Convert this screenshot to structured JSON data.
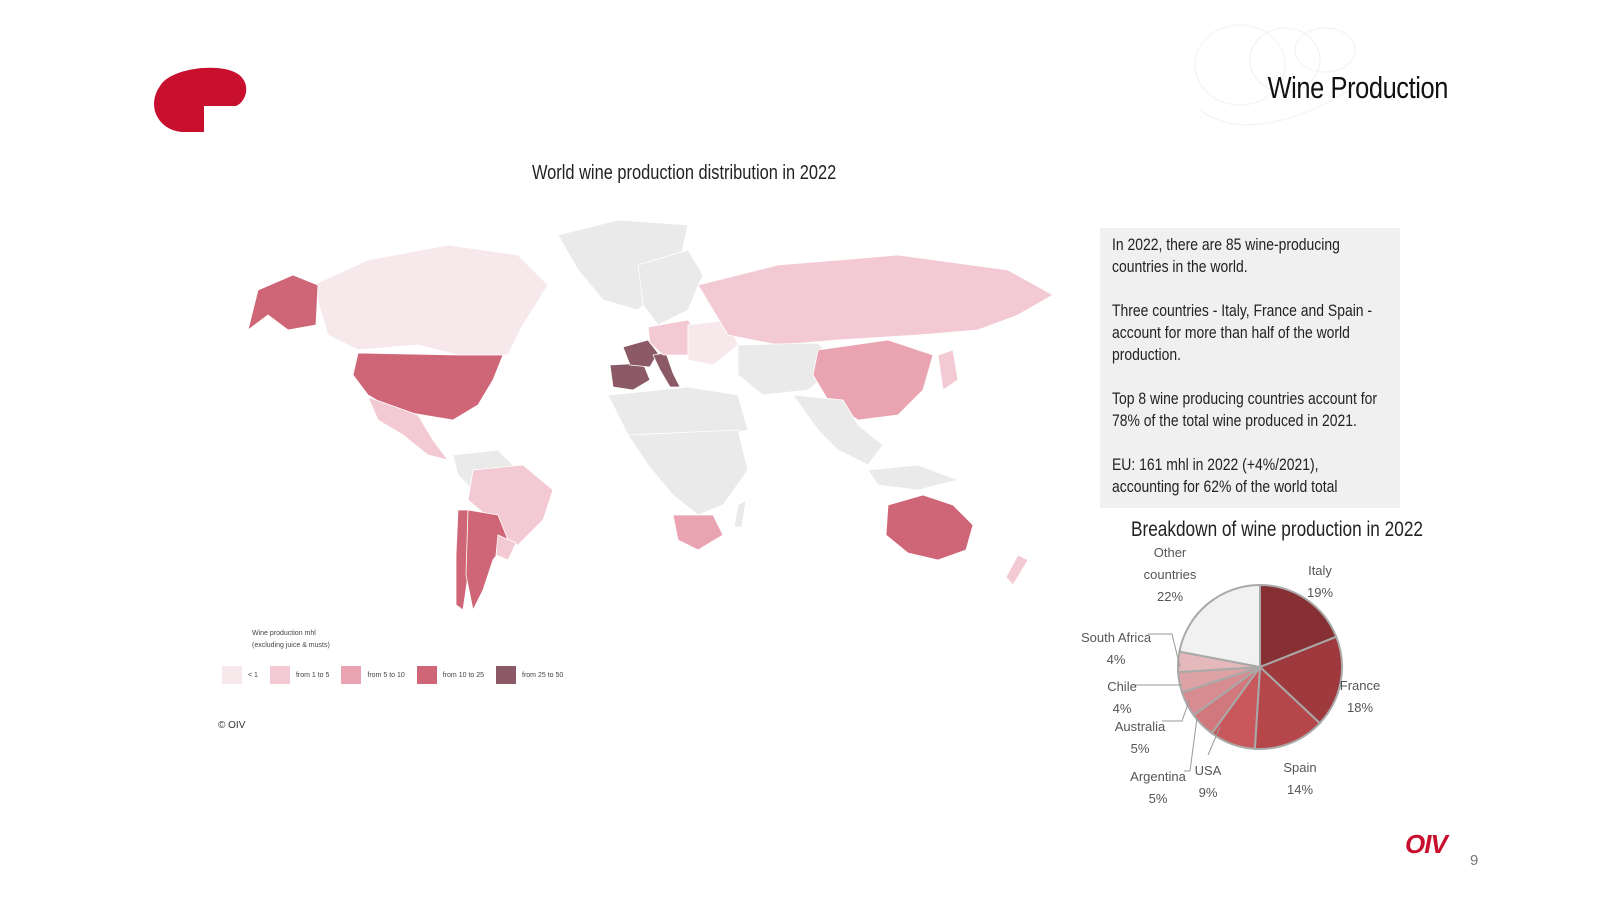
{
  "slide": {
    "title": "Wine Production",
    "page_number": "9",
    "brand": "OIV",
    "copyright": "© OIV",
    "colors": {
      "brand_red": "#c8102e"
    }
  },
  "map": {
    "title": "World wine production distribution in 2022",
    "legend_title_line1": "Wine production mhl",
    "legend_title_line2": "(excluding juice & musts)",
    "legend": [
      {
        "label": "< 1",
        "color": "#f7e8ec"
      },
      {
        "label": "from 1 to 5",
        "color": "#f3cad3"
      },
      {
        "label": "from 5 to 10",
        "color": "#eaa3b0"
      },
      {
        "label": "from 10 to 25",
        "color": "#cf6677"
      },
      {
        "label": "from 25 to 50",
        "color": "#8b5a66"
      }
    ],
    "no_data_color": "#eaeaea"
  },
  "info": {
    "paragraphs": [
      "In 2022, there are 85 wine-producing countries in the world.",
      "Three countries - Italy, France and Spain - account for more than half of the world production.",
      "Top 8 wine producing countries account for 78% of the total wine produced in 2021.",
      "EU: 161 mhl in 2022 (+4%/2021), accounting for 62% of the world total"
    ]
  },
  "chart_data": {
    "type": "pie",
    "title": "Breakdown of wine production in 2022",
    "unit": "%",
    "slices": [
      {
        "name": "Italy",
        "value": 19,
        "label": "19%",
        "color": "#873034"
      },
      {
        "name": "France",
        "value": 18,
        "label": "18%",
        "color": "#9e3a3d"
      },
      {
        "name": "Spain",
        "value": 14,
        "label": "14%",
        "color": "#b5474a"
      },
      {
        "name": "USA",
        "value": 9,
        "label": "9%",
        "color": "#c9585c"
      },
      {
        "name": "Argentina",
        "value": 5,
        "label": "5%",
        "color": "#d0787c"
      },
      {
        "name": "Australia",
        "value": 5,
        "label": "5%",
        "color": "#d68c90"
      },
      {
        "name": "Chile",
        "value": 4,
        "label": "4%",
        "color": "#dda2a5"
      },
      {
        "name": "South Africa",
        "value": 4,
        "label": "4%",
        "color": "#e5b9bb"
      },
      {
        "name": "Other countries",
        "value": 22,
        "label": "22%",
        "color": "#f1f1f1"
      }
    ]
  }
}
